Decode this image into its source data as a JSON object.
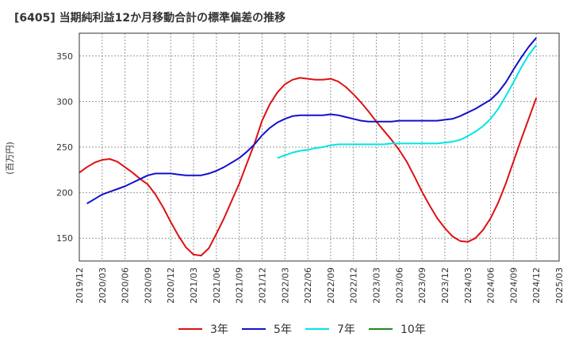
{
  "title": "[6405]  当期純利益12か月移動合計の標準偏差の推移",
  "chart_data": {
    "type": "line",
    "ylabel": "(百万円)",
    "xlabel": "",
    "ylim": [
      125,
      375
    ],
    "y_ticks": [
      150,
      200,
      250,
      300,
      350
    ],
    "x_tick_labels": [
      "2019/12",
      "2020/03",
      "2020/06",
      "2020/09",
      "2020/12",
      "2021/03",
      "2021/06",
      "2021/09",
      "2021/12",
      "2022/03",
      "2022/06",
      "2022/09",
      "2022/12",
      "2023/03",
      "2023/06",
      "2023/09",
      "2023/12",
      "2024/03",
      "2024/06",
      "2024/09",
      "2024/12",
      "2025/03"
    ],
    "grid": true,
    "legend_position": "bottom",
    "series": [
      {
        "name": "3年",
        "color": "#dd1111",
        "points": [
          [
            "2019/12",
            222
          ],
          [
            "2020/01",
            228
          ],
          [
            "2020/02",
            233
          ],
          [
            "2020/03",
            236
          ],
          [
            "2020/04",
            237
          ],
          [
            "2020/05",
            234
          ],
          [
            "2020/06",
            228
          ],
          [
            "2020/07",
            222
          ],
          [
            "2020/08",
            215
          ],
          [
            "2020/09",
            209
          ],
          [
            "2020/10",
            198
          ],
          [
            "2020/11",
            184
          ],
          [
            "2020/12",
            168
          ],
          [
            "2021/01",
            153
          ],
          [
            "2021/02",
            140
          ],
          [
            "2021/03",
            132
          ],
          [
            "2021/04",
            131
          ],
          [
            "2021/05",
            139
          ],
          [
            "2021/06",
            155
          ],
          [
            "2021/07",
            172
          ],
          [
            "2021/08",
            191
          ],
          [
            "2021/09",
            210
          ],
          [
            "2021/10",
            232
          ],
          [
            "2021/11",
            254
          ],
          [
            "2021/12",
            279
          ],
          [
            "2022/01",
            297
          ],
          [
            "2022/02",
            310
          ],
          [
            "2022/03",
            319
          ],
          [
            "2022/04",
            324
          ],
          [
            "2022/05",
            326
          ],
          [
            "2022/06",
            325
          ],
          [
            "2022/07",
            324
          ],
          [
            "2022/08",
            324
          ],
          [
            "2022/09",
            325
          ],
          [
            "2022/10",
            322
          ],
          [
            "2022/11",
            316
          ],
          [
            "2022/12",
            308
          ],
          [
            "2023/01",
            299
          ],
          [
            "2023/02",
            289
          ],
          [
            "2023/03",
            278
          ],
          [
            "2023/04",
            268
          ],
          [
            "2023/05",
            258
          ],
          [
            "2023/06",
            247
          ],
          [
            "2023/07",
            234
          ],
          [
            "2023/08",
            218
          ],
          [
            "2023/09",
            201
          ],
          [
            "2023/10",
            186
          ],
          [
            "2023/11",
            172
          ],
          [
            "2023/12",
            161
          ],
          [
            "2024/01",
            152
          ],
          [
            "2024/02",
            147
          ],
          [
            "2024/03",
            146
          ],
          [
            "2024/04",
            150
          ],
          [
            "2024/05",
            159
          ],
          [
            "2024/06",
            172
          ],
          [
            "2024/07",
            189
          ],
          [
            "2024/08",
            210
          ],
          [
            "2024/09",
            234
          ],
          [
            "2024/10",
            258
          ],
          [
            "2024/11",
            281
          ],
          [
            "2024/12",
            304
          ]
        ]
      },
      {
        "name": "5年",
        "color": "#1111cc",
        "points": [
          [
            "2020/01",
            188
          ],
          [
            "2020/02",
            193
          ],
          [
            "2020/03",
            198
          ],
          [
            "2020/04",
            201
          ],
          [
            "2020/05",
            204
          ],
          [
            "2020/06",
            207
          ],
          [
            "2020/07",
            211
          ],
          [
            "2020/08",
            215
          ],
          [
            "2020/09",
            219
          ],
          [
            "2020/10",
            221
          ],
          [
            "2020/11",
            221
          ],
          [
            "2020/12",
            221
          ],
          [
            "2021/01",
            220
          ],
          [
            "2021/02",
            219
          ],
          [
            "2021/03",
            219
          ],
          [
            "2021/04",
            219
          ],
          [
            "2021/05",
            221
          ],
          [
            "2021/06",
            224
          ],
          [
            "2021/07",
            228
          ],
          [
            "2021/08",
            233
          ],
          [
            "2021/09",
            238
          ],
          [
            "2021/10",
            245
          ],
          [
            "2021/11",
            253
          ],
          [
            "2021/12",
            263
          ],
          [
            "2022/01",
            271
          ],
          [
            "2022/02",
            277
          ],
          [
            "2022/03",
            281
          ],
          [
            "2022/04",
            284
          ],
          [
            "2022/05",
            285
          ],
          [
            "2022/06",
            285
          ],
          [
            "2022/07",
            285
          ],
          [
            "2022/08",
            285
          ],
          [
            "2022/09",
            286
          ],
          [
            "2022/10",
            285
          ],
          [
            "2022/11",
            283
          ],
          [
            "2022/12",
            281
          ],
          [
            "2023/01",
            279
          ],
          [
            "2023/02",
            278
          ],
          [
            "2023/03",
            278
          ],
          [
            "2023/04",
            278
          ],
          [
            "2023/05",
            278
          ],
          [
            "2023/06",
            279
          ],
          [
            "2023/07",
            279
          ],
          [
            "2023/08",
            279
          ],
          [
            "2023/09",
            279
          ],
          [
            "2023/10",
            279
          ],
          [
            "2023/11",
            279
          ],
          [
            "2023/12",
            280
          ],
          [
            "2024/01",
            281
          ],
          [
            "2024/02",
            284
          ],
          [
            "2024/03",
            288
          ],
          [
            "2024/04",
            292
          ],
          [
            "2024/05",
            297
          ],
          [
            "2024/06",
            302
          ],
          [
            "2024/07",
            310
          ],
          [
            "2024/08",
            321
          ],
          [
            "2024/09",
            335
          ],
          [
            "2024/10",
            348
          ],
          [
            "2024/11",
            360
          ],
          [
            "2024/12",
            370
          ]
        ]
      },
      {
        "name": "7年",
        "color": "#00e5e5",
        "points": [
          [
            "2022/02",
            238
          ],
          [
            "2022/03",
            241
          ],
          [
            "2022/04",
            244
          ],
          [
            "2022/05",
            246
          ],
          [
            "2022/06",
            247
          ],
          [
            "2022/07",
            249
          ],
          [
            "2022/08",
            250
          ],
          [
            "2022/09",
            252
          ],
          [
            "2022/10",
            253
          ],
          [
            "2022/11",
            253
          ],
          [
            "2022/12",
            253
          ],
          [
            "2023/01",
            253
          ],
          [
            "2023/02",
            253
          ],
          [
            "2023/03",
            253
          ],
          [
            "2023/04",
            253
          ],
          [
            "2023/05",
            254
          ],
          [
            "2023/06",
            254
          ],
          [
            "2023/07",
            254
          ],
          [
            "2023/08",
            254
          ],
          [
            "2023/09",
            254
          ],
          [
            "2023/10",
            254
          ],
          [
            "2023/11",
            254
          ],
          [
            "2023/12",
            255
          ],
          [
            "2024/01",
            256
          ],
          [
            "2024/02",
            258
          ],
          [
            "2024/03",
            262
          ],
          [
            "2024/04",
            267
          ],
          [
            "2024/05",
            273
          ],
          [
            "2024/06",
            281
          ],
          [
            "2024/07",
            292
          ],
          [
            "2024/08",
            306
          ],
          [
            "2024/09",
            321
          ],
          [
            "2024/10",
            337
          ],
          [
            "2024/11",
            351
          ],
          [
            "2024/12",
            362
          ]
        ]
      },
      {
        "name": "10年",
        "color": "#228822",
        "points": []
      }
    ]
  }
}
